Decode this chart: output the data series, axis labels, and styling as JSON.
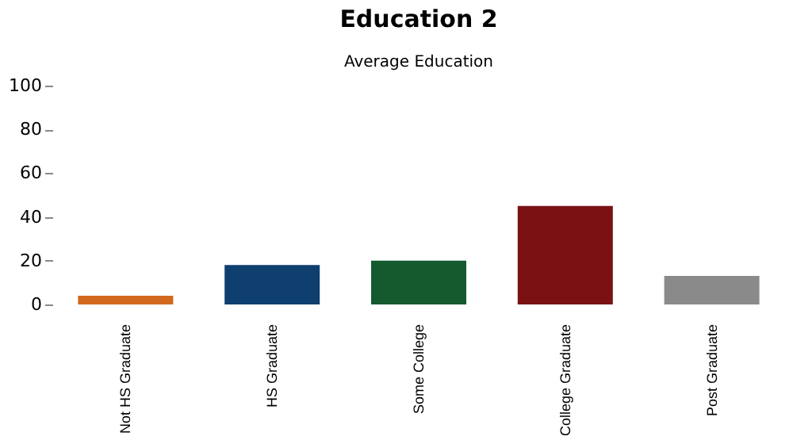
{
  "chart_data": {
    "type": "bar",
    "title": "Education 2",
    "subtitle": "Average Education",
    "categories": [
      "Not HS Graduate",
      "HS Graduate",
      "Some College",
      "College Graduate",
      "Post Graduate"
    ],
    "values": [
      4,
      18,
      20,
      45,
      13
    ],
    "colors": [
      "#d2691e",
      "#0f3f6e",
      "#145a2e",
      "#7a1214",
      "#8a8a8a"
    ],
    "ylim": [
      0,
      100
    ],
    "yticks": [
      0,
      20,
      40,
      60,
      80,
      100
    ],
    "grid": false
  }
}
